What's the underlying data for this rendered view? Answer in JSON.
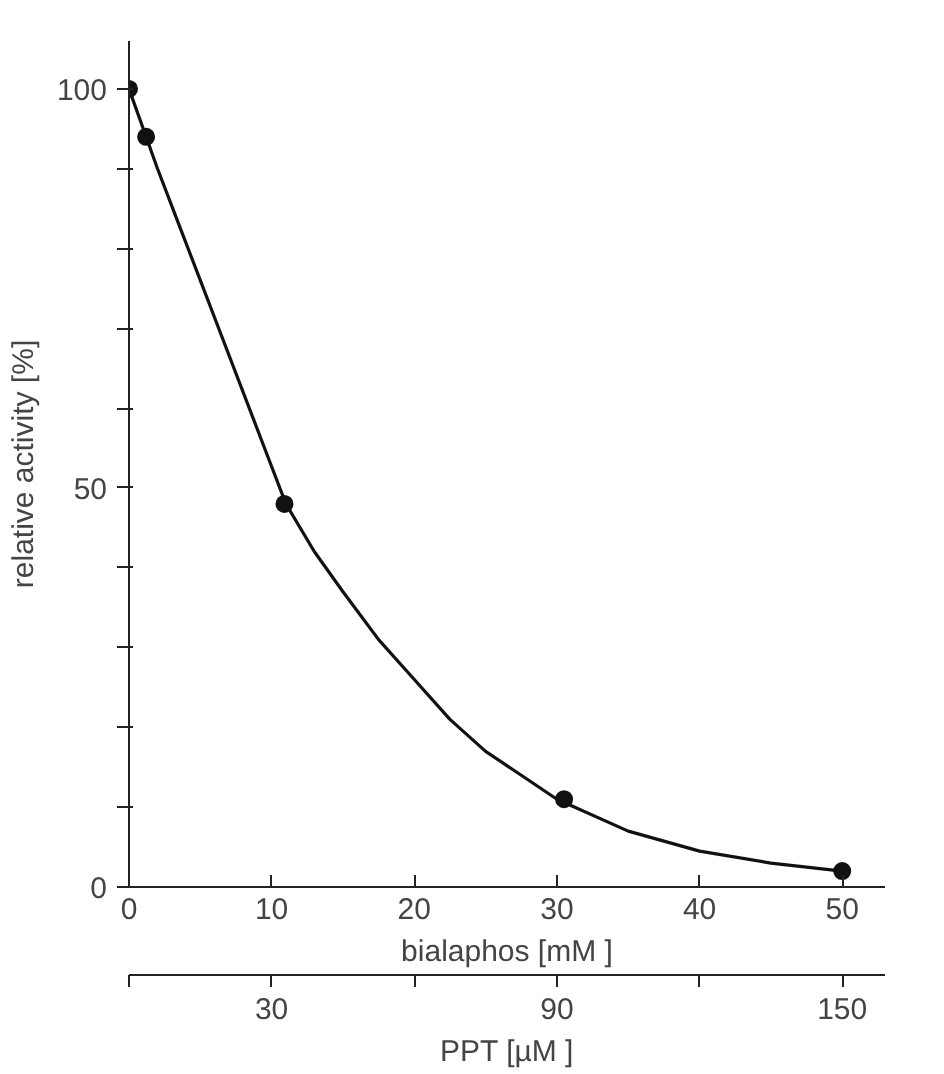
{
  "chart_data": {
    "type": "scatter",
    "xlabel": "bialaphos [mM ]",
    "ylabel": "relative activity [%]",
    "x2label": "PPT [µM ]",
    "xlim": [
      0,
      53
    ],
    "ylim": [
      0,
      106
    ],
    "xticks": [
      0,
      10,
      20,
      30,
      40,
      50
    ],
    "yticks": [
      0,
      {
        "value": 10,
        "label": null
      },
      {
        "value": 20,
        "label": null
      },
      {
        "value": 30,
        "label": null
      },
      {
        "value": 40,
        "label": null
      },
      50,
      {
        "value": 60,
        "label": null
      },
      {
        "value": 70,
        "label": null
      },
      {
        "value": 80,
        "label": null
      },
      {
        "value": 90,
        "label": null
      },
      100
    ],
    "x2lim": [
      0,
      159
    ],
    "x2ticks": [
      {
        "value": 0,
        "label": null
      },
      30,
      {
        "value": 60,
        "label": null
      },
      90,
      {
        "value": 120,
        "label": null
      },
      150
    ],
    "marker": "circle",
    "grid": false,
    "series": [
      {
        "type": "line",
        "marker": "none",
        "color": "#111111",
        "x": [
          0,
          1,
          2,
          3.5,
          5,
          6.5,
          8,
          9.5,
          11,
          13,
          15,
          17.5,
          20,
          22.5,
          25,
          27.5,
          30,
          35,
          40,
          45,
          50
        ],
        "values": [
          100,
          95,
          90,
          83,
          76,
          69,
          62,
          55,
          48,
          42,
          37,
          31,
          26,
          21,
          17,
          14,
          11,
          7,
          4.5,
          3,
          2
        ]
      },
      {
        "color": "#111111",
        "x": [
          0,
          1.2,
          10.9,
          30.5,
          50
        ],
        "values": [
          100,
          94,
          48,
          11,
          2
        ]
      }
    ]
  }
}
